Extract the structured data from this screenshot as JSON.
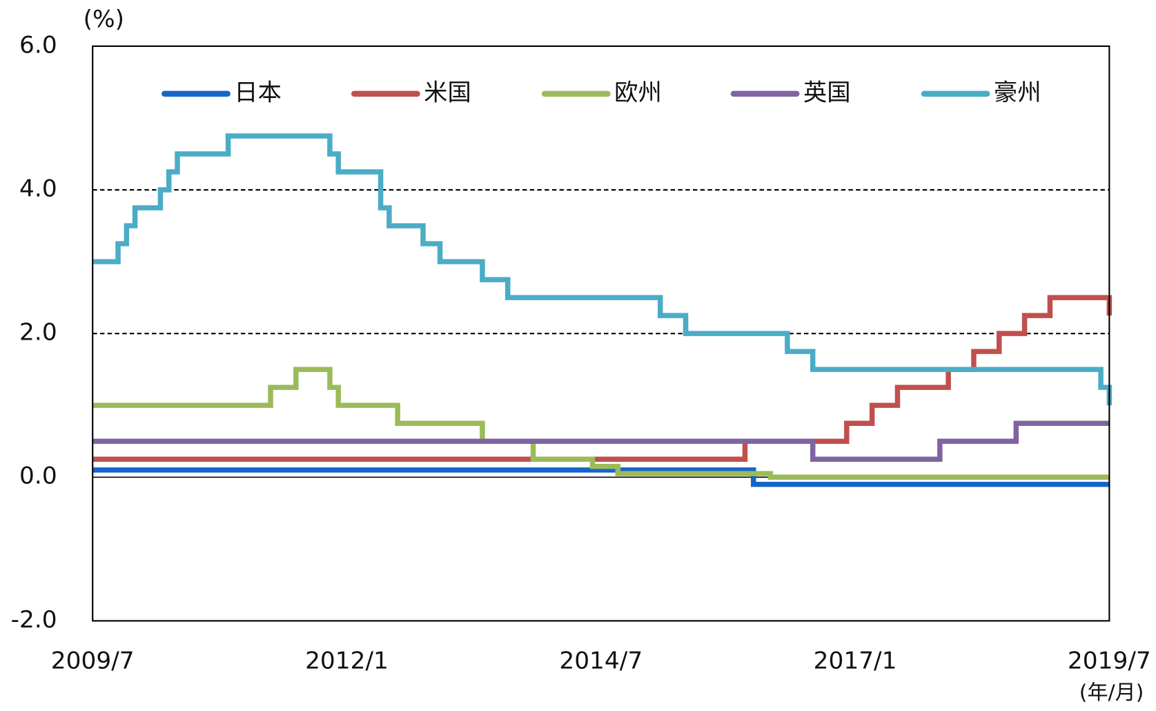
{
  "chart_data": {
    "type": "line",
    "step": true,
    "y_unit": "(%)",
    "x_unit": "(年/月)",
    "xlim": [
      "2009/7",
      "2019/7"
    ],
    "xticks": [
      "2009/7",
      "2012/1",
      "2014/7",
      "2017/1",
      "2019/7"
    ],
    "ylim": [
      -2,
      6
    ],
    "yticks": [
      {
        "value": -2,
        "label": "-2.0"
      },
      {
        "value": 0,
        "label": "0.0"
      },
      {
        "value": 2,
        "label": "2.0"
      },
      {
        "value": 4,
        "label": "4.0"
      },
      {
        "value": 6,
        "label": "6.0"
      }
    ],
    "grid": true,
    "legend": "top",
    "series": [
      {
        "name": "日本",
        "color": "#1565c8",
        "x": [
          "2009/7",
          "2016/1",
          "2019/7"
        ],
        "values": [
          0.1,
          -0.1,
          -0.1
        ]
      },
      {
        "name": "米国",
        "color": "#c0504d",
        "x": [
          "2009/7",
          "2015/12",
          "2016/12",
          "2017/3",
          "2017/6",
          "2017/12",
          "2018/3",
          "2018/6",
          "2018/9",
          "2018/12",
          "2019/7"
        ],
        "values": [
          0.25,
          0.5,
          0.75,
          1.0,
          1.25,
          1.5,
          1.75,
          2.0,
          2.25,
          2.5,
          2.25
        ]
      },
      {
        "name": "欧州",
        "color": "#9bbb59",
        "x": [
          "2009/7",
          "2011/4",
          "2011/7",
          "2011/11",
          "2011/12",
          "2012/7",
          "2013/5",
          "2013/11",
          "2014/6",
          "2014/9",
          "2016/3",
          "2019/7"
        ],
        "values": [
          1.0,
          1.25,
          1.5,
          1.25,
          1.0,
          0.75,
          0.5,
          0.25,
          0.15,
          0.05,
          0.0,
          0.0
        ]
      },
      {
        "name": "英国",
        "color": "#8064a2",
        "x": [
          "2009/7",
          "2016/8",
          "2017/11",
          "2018/8",
          "2019/7"
        ],
        "values": [
          0.5,
          0.25,
          0.5,
          0.75,
          0.75
        ]
      },
      {
        "name": "豪州",
        "color": "#4bacc6",
        "x": [
          "2009/7",
          "2009/10",
          "2009/11",
          "2009/12",
          "2010/3",
          "2010/4",
          "2010/5",
          "2010/11",
          "2011/11",
          "2011/12",
          "2012/5",
          "2012/6",
          "2012/10",
          "2012/12",
          "2013/5",
          "2013/8",
          "2015/2",
          "2015/5",
          "2016/5",
          "2016/8",
          "2019/6",
          "2019/7"
        ],
        "values": [
          3.0,
          3.25,
          3.5,
          3.75,
          4.0,
          4.25,
          4.5,
          4.75,
          4.5,
          4.25,
          3.75,
          3.5,
          3.25,
          3.0,
          2.75,
          2.5,
          2.25,
          2.0,
          1.75,
          1.5,
          1.25,
          1.0
        ]
      }
    ]
  }
}
